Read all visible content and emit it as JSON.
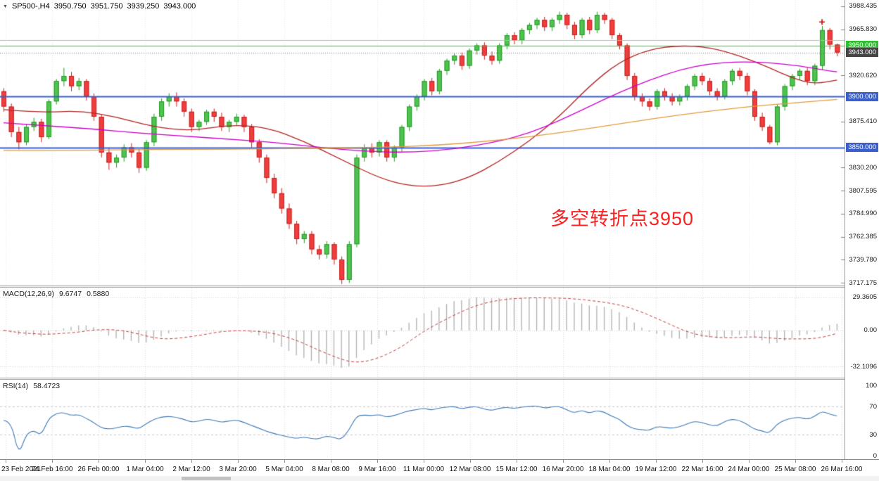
{
  "header": {
    "icon": "▼",
    "symbol": "SP500-,H4",
    "open": "3950.750",
    "high": "3951.750",
    "low": "3939.250",
    "close": "3943.000"
  },
  "macd_panel": {
    "name": "MACD(12,26,9)",
    "value": "9.6747",
    "signal": "0.5880"
  },
  "rsi_panel": {
    "name": "RSI(14)",
    "value": "58.4723"
  },
  "chart_data": {
    "type": "candlestick",
    "symbol": "SP500-",
    "timeframe": "H4",
    "title": "SP500-,H4 3950.750 3951.750 3939.250 3943.000",
    "price_range": [
      3714.5,
      3994.5
    ],
    "annotation": {
      "text": "多空转折点3950",
      "color": "#FF1F1F",
      "x": 782,
      "y": 289
    },
    "x_labels": [
      "23 Feb 2021",
      "24 Feb 16:00",
      "26 Feb 00:00",
      "1 Mar 04:00",
      "2 Mar 12:00",
      "3 Mar 20:00",
      "5 Mar 04:00",
      "8 Mar 08:00",
      "9 Mar 16:00",
      "11 Mar 00:00",
      "12 Mar 08:00",
      "15 Mar 12:00",
      "16 Mar 20:00",
      "18 Mar 04:00",
      "19 Mar 12:00",
      "22 Mar 16:00",
      "24 Mar 00:00",
      "25 Mar 08:00",
      "26 Mar 16:00"
    ],
    "y_ticks": [
      {
        "text": "3988.435",
        "price": 3988.435
      },
      {
        "text": "3965.830",
        "price": 3965.83
      },
      {
        "text": "3920.620",
        "price": 3920.62
      },
      {
        "text": "3875.410",
        "price": 3875.41
      },
      {
        "text": "3830.200",
        "price": 3830.2
      },
      {
        "text": "3807.595",
        "price": 3807.595
      },
      {
        "text": "3784.990",
        "price": 3784.99
      },
      {
        "text": "3762.385",
        "price": 3762.385
      },
      {
        "text": "3739.780",
        "price": 3739.78
      },
      {
        "text": "3717.175",
        "price": 3717.175
      }
    ],
    "price_badges": [
      {
        "text": "3950.000",
        "price": 3950,
        "bg": "#2FBE2F"
      },
      {
        "text": "3943.000",
        "price": 3943,
        "bg": "#454545"
      },
      {
        "text": "3900.000",
        "price": 3900,
        "bg": "#3A5FCD"
      },
      {
        "text": "3850.000",
        "price": 3850,
        "bg": "#3A5FCD"
      }
    ],
    "hlines": [
      {
        "price": 3955.5,
        "color": "#A9C4A9",
        "width": 1
      },
      {
        "price": 3950,
        "color": "#2FBE2F",
        "width": 1
      },
      {
        "price": 3900,
        "color": "#3A5FCD",
        "width": 2
      },
      {
        "price": 3850,
        "color": "#3A5FCD",
        "width": 2
      }
    ],
    "current_price": 3943.0,
    "marker": {
      "shape": "plus",
      "color": "#D00000",
      "bar": 109,
      "price": 3973
    },
    "candle_style": {
      "up_fill": "#4FC34F",
      "up_stroke": "#259925",
      "down_fill": "#EF3E3E",
      "down_stroke": "#C81E1E"
    },
    "ohlc": [
      [
        3905,
        3908,
        3885,
        3890
      ],
      [
        3890,
        3893,
        3860,
        3865
      ],
      [
        3865,
        3870,
        3848,
        3855
      ],
      [
        3855,
        3873,
        3852,
        3870
      ],
      [
        3870,
        3879,
        3866,
        3875
      ],
      [
        3875,
        3878,
        3855,
        3860
      ],
      [
        3860,
        3897,
        3858,
        3895
      ],
      [
        3895,
        3917,
        3892,
        3915
      ],
      [
        3915,
        3928,
        3910,
        3920
      ],
      [
        3920,
        3924,
        3905,
        3910
      ],
      [
        3910,
        3918,
        3906,
        3915
      ],
      [
        3915,
        3917,
        3896,
        3900
      ],
      [
        3900,
        3903,
        3876,
        3880
      ],
      [
        3880,
        3882,
        3840,
        3845
      ],
      [
        3845,
        3850,
        3828,
        3835
      ],
      [
        3835,
        3843,
        3830,
        3840
      ],
      [
        3840,
        3853,
        3836,
        3850
      ],
      [
        3850,
        3854,
        3840,
        3845
      ],
      [
        3845,
        3848,
        3825,
        3830
      ],
      [
        3830,
        3857,
        3827,
        3855
      ],
      [
        3855,
        3883,
        3851,
        3880
      ],
      [
        3880,
        3898,
        3876,
        3895
      ],
      [
        3895,
        3903,
        3890,
        3900
      ],
      [
        3900,
        3904,
        3890,
        3895
      ],
      [
        3895,
        3898,
        3880,
        3885
      ],
      [
        3885,
        3888,
        3865,
        3870
      ],
      [
        3870,
        3877,
        3866,
        3875
      ],
      [
        3875,
        3887,
        3872,
        3885
      ],
      [
        3885,
        3888,
        3875,
        3880
      ],
      [
        3880,
        3884,
        3866,
        3870
      ],
      [
        3870,
        3877,
        3865,
        3875
      ],
      [
        3875,
        3883,
        3871,
        3880
      ],
      [
        3880,
        3882,
        3865,
        3870
      ],
      [
        3870,
        3873,
        3850,
        3855
      ],
      [
        3855,
        3858,
        3835,
        3840
      ],
      [
        3840,
        3843,
        3815,
        3820
      ],
      [
        3820,
        3824,
        3800,
        3805
      ],
      [
        3805,
        3810,
        3785,
        3790
      ],
      [
        3790,
        3795,
        3770,
        3775
      ],
      [
        3775,
        3778,
        3755,
        3760
      ],
      [
        3760,
        3768,
        3756,
        3765
      ],
      [
        3765,
        3768,
        3745,
        3750
      ],
      [
        3750,
        3754,
        3740,
        3745
      ],
      [
        3745,
        3758,
        3741,
        3755
      ],
      [
        3755,
        3757,
        3735,
        3740
      ],
      [
        3740,
        3743,
        3716,
        3720
      ],
      [
        3720,
        3758,
        3717,
        3755
      ],
      [
        3755,
        3843,
        3752,
        3840
      ],
      [
        3840,
        3853,
        3836,
        3850
      ],
      [
        3850,
        3854,
        3840,
        3845
      ],
      [
        3845,
        3857,
        3841,
        3855
      ],
      [
        3855,
        3857,
        3836,
        3840
      ],
      [
        3840,
        3852,
        3836,
        3850
      ],
      [
        3850,
        3872,
        3846,
        3870
      ],
      [
        3870,
        3892,
        3866,
        3890
      ],
      [
        3890,
        3902,
        3886,
        3900
      ],
      [
        3900,
        3917,
        3896,
        3915
      ],
      [
        3915,
        3918,
        3901,
        3905
      ],
      [
        3905,
        3927,
        3902,
        3925
      ],
      [
        3925,
        3937,
        3921,
        3935
      ],
      [
        3935,
        3942,
        3931,
        3940
      ],
      [
        3940,
        3943,
        3926,
        3930
      ],
      [
        3930,
        3947,
        3927,
        3945
      ],
      [
        3945,
        3952,
        3941,
        3950
      ],
      [
        3950,
        3953,
        3936,
        3940
      ],
      [
        3940,
        3944,
        3931,
        3935
      ],
      [
        3935,
        3952,
        3932,
        3950
      ],
      [
        3950,
        3962,
        3946,
        3960
      ],
      [
        3960,
        3963,
        3951,
        3955
      ],
      [
        3955,
        3967,
        3951,
        3965
      ],
      [
        3965,
        3972,
        3961,
        3970
      ],
      [
        3970,
        3977,
        3966,
        3975
      ],
      [
        3975,
        3978,
        3964,
        3968
      ],
      [
        3968,
        3977,
        3964,
        3975
      ],
      [
        3975,
        3983,
        3971,
        3980
      ],
      [
        3980,
        3982,
        3966,
        3970
      ],
      [
        3970,
        3973,
        3956,
        3960
      ],
      [
        3960,
        3977,
        3957,
        3975
      ],
      [
        3975,
        3978,
        3961,
        3965
      ],
      [
        3965,
        3983,
        3962,
        3980
      ],
      [
        3980,
        3982,
        3971,
        3975
      ],
      [
        3975,
        3977,
        3956,
        3960
      ],
      [
        3960,
        3962,
        3946,
        3950
      ],
      [
        3950,
        3952,
        3916,
        3920
      ],
      [
        3920,
        3923,
        3896,
        3900
      ],
      [
        3900,
        3903,
        3890,
        3895
      ],
      [
        3895,
        3898,
        3886,
        3890
      ],
      [
        3890,
        3907,
        3887,
        3905
      ],
      [
        3905,
        3908,
        3896,
        3900
      ],
      [
        3900,
        3903,
        3891,
        3895
      ],
      [
        3895,
        3902,
        3891,
        3900
      ],
      [
        3900,
        3912,
        3896,
        3910
      ],
      [
        3910,
        3922,
        3906,
        3920
      ],
      [
        3920,
        3923,
        3911,
        3915
      ],
      [
        3915,
        3918,
        3901,
        3905
      ],
      [
        3905,
        3908,
        3896,
        3900
      ],
      [
        3900,
        3917,
        3897,
        3915
      ],
      [
        3915,
        3927,
        3911,
        3925
      ],
      [
        3925,
        3928,
        3916,
        3920
      ],
      [
        3920,
        3923,
        3901,
        3905
      ],
      [
        3905,
        3907,
        3876,
        3880
      ],
      [
        3880,
        3884,
        3866,
        3870
      ],
      [
        3870,
        3872,
        3853,
        3855
      ],
      [
        3855,
        3892,
        3852,
        3890
      ],
      [
        3890,
        3912,
        3886,
        3910
      ],
      [
        3910,
        3922,
        3906,
        3920
      ],
      [
        3920,
        3927,
        3916,
        3925
      ],
      [
        3925,
        3928,
        3911,
        3915
      ],
      [
        3915,
        3932,
        3911,
        3930
      ],
      [
        3930,
        3969,
        3926,
        3965
      ],
      [
        3965,
        3967,
        3946,
        3950.75
      ],
      [
        3950.75,
        3951.75,
        3939.25,
        3943
      ]
    ],
    "overlays": [
      {
        "name": "ma-fast-red",
        "color": "#B22222",
        "width": 1.3,
        "points": [
          [
            0,
            3887
          ],
          [
            5,
            3884
          ],
          [
            10,
            3886
          ],
          [
            15,
            3880
          ],
          [
            20,
            3870
          ],
          [
            25,
            3866
          ],
          [
            30,
            3872
          ],
          [
            35,
            3870
          ],
          [
            40,
            3856
          ],
          [
            45,
            3838
          ],
          [
            50,
            3820
          ],
          [
            54,
            3812
          ],
          [
            58,
            3812
          ],
          [
            62,
            3820
          ],
          [
            66,
            3836
          ],
          [
            70,
            3856
          ],
          [
            74,
            3880
          ],
          [
            78,
            3910
          ],
          [
            82,
            3934
          ],
          [
            86,
            3946
          ],
          [
            90,
            3950
          ],
          [
            94,
            3948
          ],
          [
            98,
            3940
          ],
          [
            102,
            3928
          ],
          [
            105,
            3918
          ],
          [
            108,
            3912
          ],
          [
            111,
            3916
          ]
        ]
      },
      {
        "name": "ma-mid-magenta",
        "color": "#CC00CC",
        "width": 1.3,
        "points": [
          [
            0,
            3874
          ],
          [
            6,
            3871
          ],
          [
            12,
            3868
          ],
          [
            18,
            3864
          ],
          [
            24,
            3861
          ],
          [
            30,
            3858
          ],
          [
            36,
            3855
          ],
          [
            42,
            3850
          ],
          [
            48,
            3846
          ],
          [
            54,
            3845
          ],
          [
            60,
            3848
          ],
          [
            66,
            3856
          ],
          [
            70,
            3864
          ],
          [
            74,
            3876
          ],
          [
            78,
            3890
          ],
          [
            82,
            3904
          ],
          [
            86,
            3916
          ],
          [
            90,
            3926
          ],
          [
            94,
            3932
          ],
          [
            98,
            3934
          ],
          [
            102,
            3933
          ],
          [
            106,
            3930
          ],
          [
            109,
            3926
          ],
          [
            111,
            3924
          ]
        ]
      },
      {
        "name": "ma-slow-orange",
        "color": "#E09B3D",
        "width": 1.3,
        "points": [
          [
            0,
            3847
          ],
          [
            10,
            3847
          ],
          [
            20,
            3848
          ],
          [
            30,
            3848
          ],
          [
            40,
            3849
          ],
          [
            50,
            3850
          ],
          [
            58,
            3852
          ],
          [
            66,
            3857
          ],
          [
            74,
            3864
          ],
          [
            82,
            3873
          ],
          [
            90,
            3882
          ],
          [
            98,
            3889
          ],
          [
            104,
            3893
          ],
          [
            111,
            3897
          ]
        ]
      }
    ],
    "macd": {
      "params": [
        12,
        26,
        9
      ],
      "value": 9.6747,
      "signal_value": 0.588,
      "hist_color": "#B4B4B4",
      "signal_color": "#C03030",
      "range": [
        -42,
        38
      ],
      "axis_labels": [
        {
          "text": "29.3605",
          "value": 29.3605
        },
        {
          "text": "0.00",
          "value": 0
        },
        {
          "text": "-32.1096",
          "value": -32.1096
        }
      ]
    },
    "rsi": {
      "period": 14,
      "value": 58.4723,
      "color": "#3C78B4",
      "range": [
        -4,
        108
      ],
      "levels": [
        70,
        30
      ],
      "axis_labels": [
        {
          "text": "100",
          "value": 100
        },
        {
          "text": "70",
          "value": 70
        },
        {
          "text": "30",
          "value": 30
        },
        {
          "text": "0",
          "value": 0
        }
      ]
    }
  }
}
